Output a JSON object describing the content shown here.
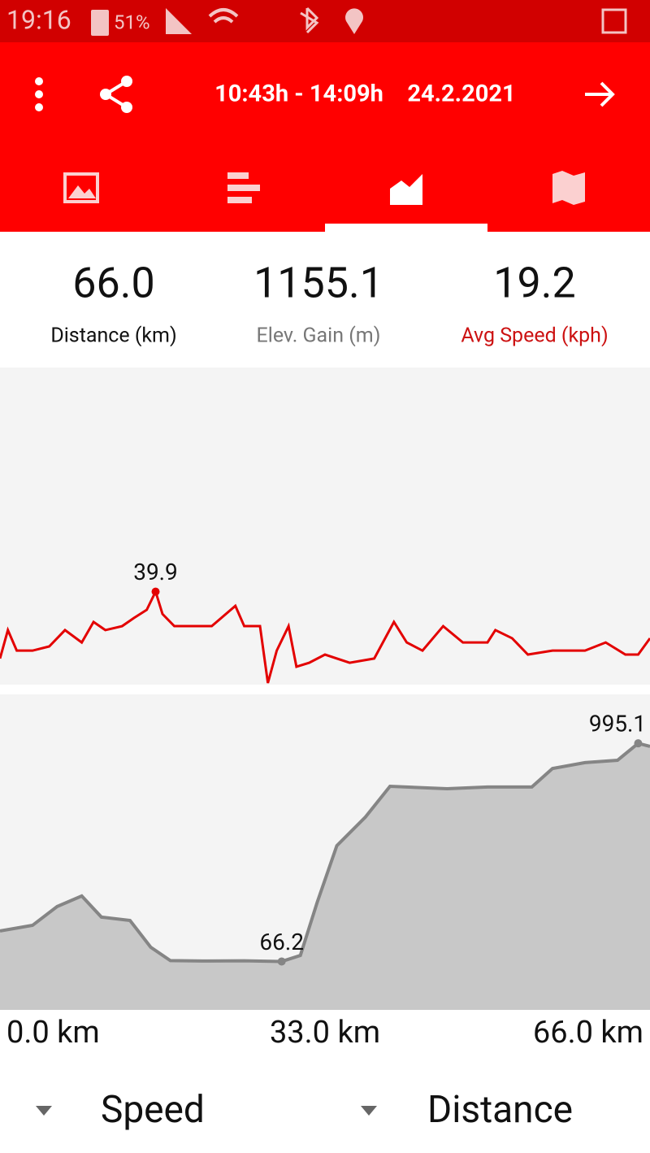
{
  "status_bar": {
    "time": "19:16",
    "battery": "51%"
  },
  "header": {
    "time_range": "10:43h - 14:09h",
    "date": "24.2.2021"
  },
  "stats": [
    {
      "value": "66.0",
      "label": "Distance (km)"
    },
    {
      "value": "1155.1",
      "label": "Elev. Gain (m)"
    },
    {
      "value": "19.2",
      "label": "Avg Speed (kph)"
    }
  ],
  "chart_data": [
    {
      "type": "line",
      "name": "Speed",
      "color": "#e30000",
      "x": [
        0,
        0.8,
        1.7,
        3.3,
        5.0,
        6.6,
        8.3,
        9.5,
        10.7,
        12.4,
        13.6,
        14.9,
        15.8,
        16.5,
        17.7,
        19.8,
        21.5,
        23.9,
        24.8,
        26.4,
        27.2,
        28.1,
        29.3,
        30.1,
        31.4,
        33.0,
        35.5,
        38.0,
        40.0,
        41.3,
        42.9,
        45.0,
        47.0,
        49.5,
        50.3,
        52.0,
        53.6,
        56.1,
        59.4,
        61.5,
        63.5,
        64.8,
        66.0
      ],
      "values": [
        11.2,
        23.4,
        14.6,
        14.6,
        16.4,
        23.4,
        18.1,
        26.9,
        23.4,
        25.1,
        28.6,
        32.1,
        39.9,
        30.3,
        25.1,
        25.1,
        25.1,
        33.8,
        25.1,
        25.1,
        0.7,
        14.6,
        25.1,
        7.7,
        9.4,
        12.9,
        9.4,
        11.2,
        26.9,
        18.1,
        14.6,
        25.1,
        18.1,
        18.1,
        23.4,
        19.9,
        12.9,
        14.6,
        14.6,
        18.1,
        12.9,
        12.9,
        19.9
      ],
      "xlim": [
        0,
        66
      ],
      "ylim": [
        0,
        135
      ]
    },
    {
      "type": "area",
      "name": "Elevation",
      "color": "#c8c8c8",
      "line_color": "#858585",
      "x": [
        0,
        3.3,
        5.8,
        8.3,
        10.3,
        13.2,
        15.3,
        17.3,
        20.6,
        24.8,
        28.6,
        30.5,
        32.2,
        34.2,
        37.1,
        39.6,
        45.4,
        49.5,
        54.0,
        56.1,
        59.4,
        62.7,
        64.8,
        66.0
      ],
      "values": [
        196,
        220,
        300,
        345,
        255,
        241,
        127,
        70,
        68,
        69,
        66.2,
        92,
        317,
        559,
        681,
        812,
        802,
        809,
        809,
        888,
        913,
        923,
        995.1,
        982
      ],
      "xlim": [
        0,
        66
      ],
      "ylim": [
        -140,
        1200
      ],
      "xticks": [
        {
          "value": 0,
          "label": "0.0 km"
        },
        {
          "value": 33,
          "label": "33.0 km"
        },
        {
          "value": 66,
          "label": "66.0 km"
        }
      ]
    }
  ],
  "selectors": {
    "y_metric": "Speed",
    "x_metric": "Distance"
  }
}
